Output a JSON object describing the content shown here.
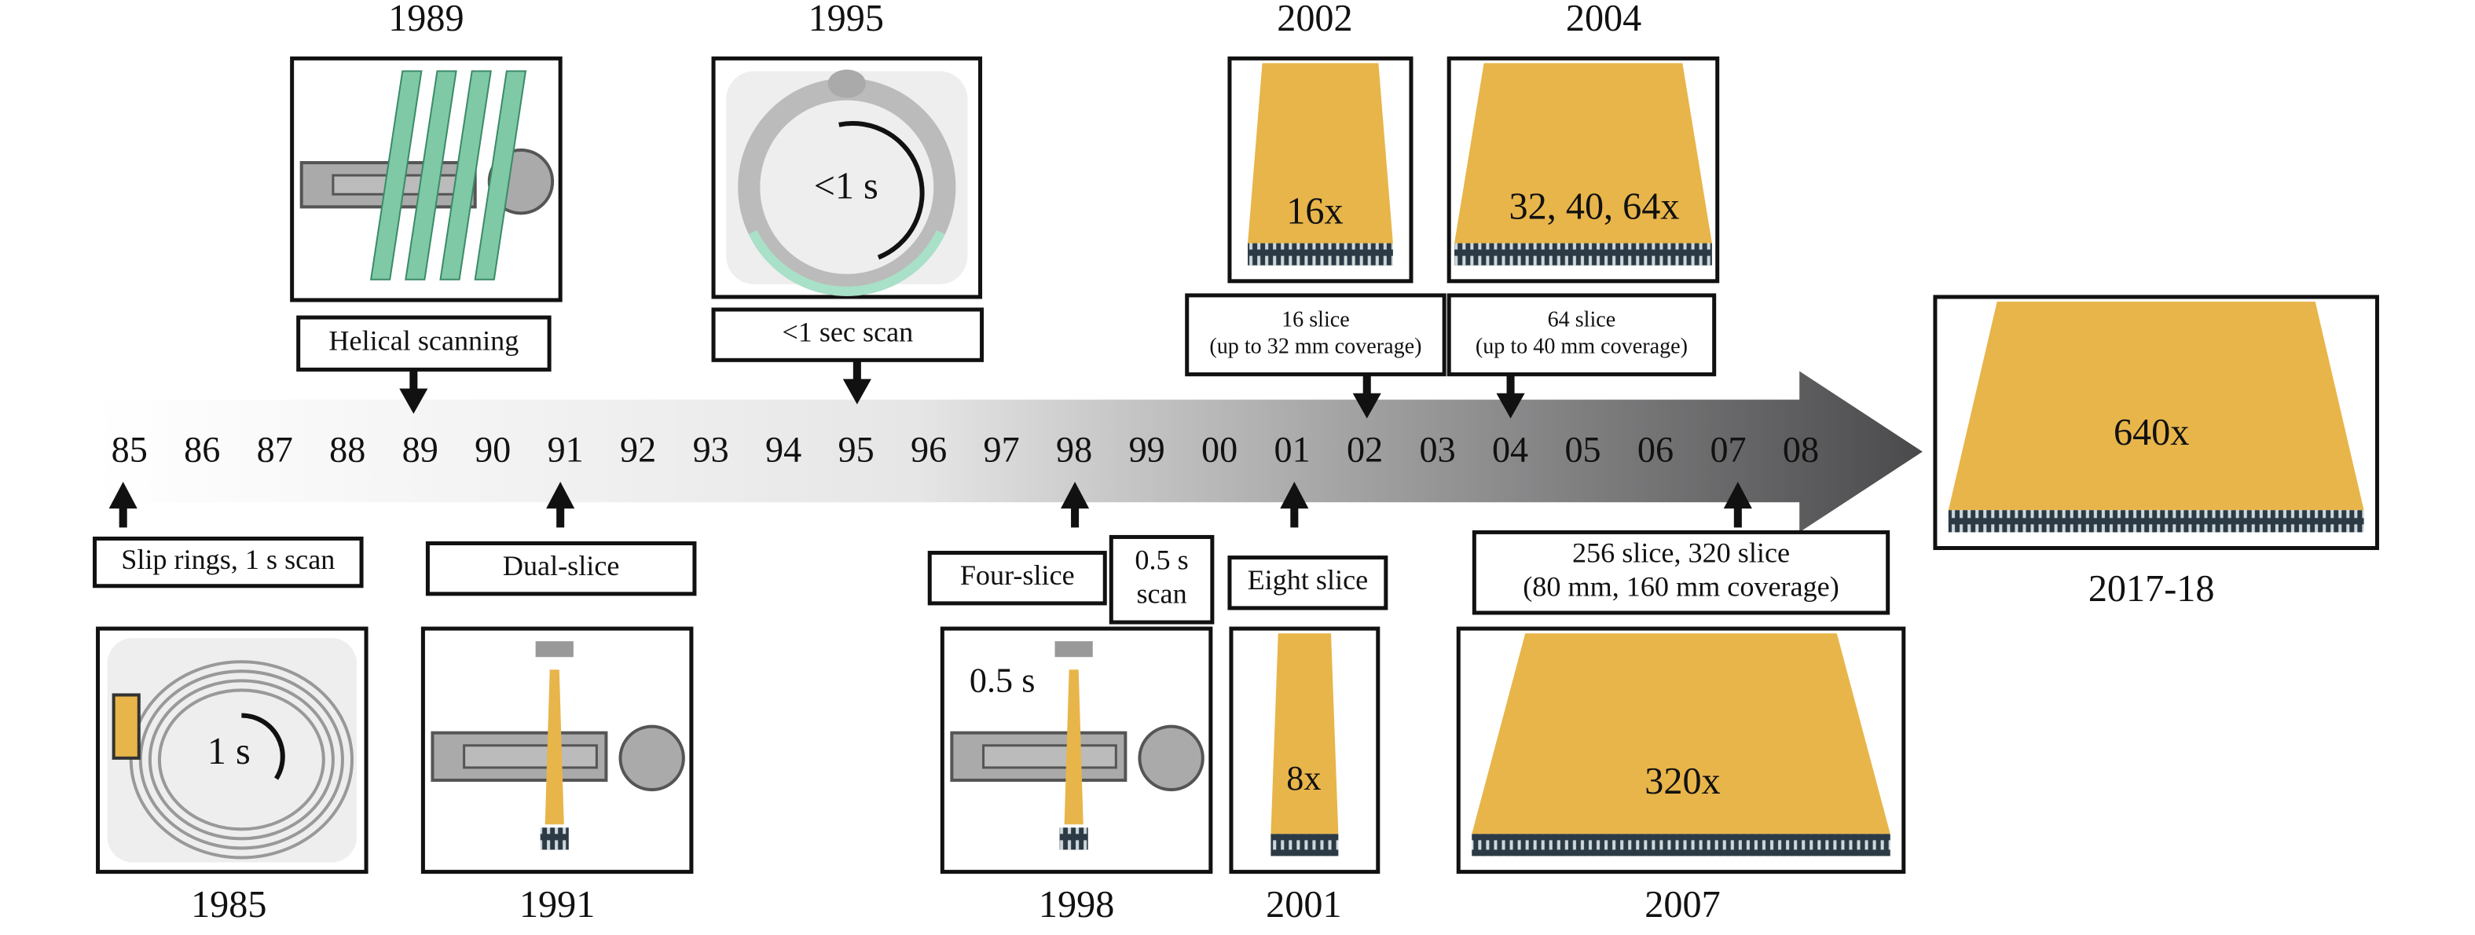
{
  "timeline": {
    "ticks": [
      "85",
      "86",
      "87",
      "88",
      "89",
      "90",
      "91",
      "92",
      "93",
      "94",
      "95",
      "96",
      "97",
      "98",
      "99",
      "00",
      "01",
      "02",
      "03",
      "04",
      "05",
      "06",
      "07",
      "08"
    ]
  },
  "events": [
    {
      "year": "1989",
      "labels": [
        [
          "Helical scanning"
        ]
      ]
    },
    {
      "year": "1995",
      "labels": [
        [
          "<1 sec scan"
        ]
      ],
      "panel_text": "<1 s"
    },
    {
      "year": "2002",
      "labels": [
        [
          "16 slice",
          "(up to 32 mm coverage)"
        ]
      ],
      "panel_text": "16x"
    },
    {
      "year": "2004",
      "labels": [
        [
          "64 slice",
          "(up to 40 mm coverage)"
        ]
      ],
      "panel_text": "32, 40, 64x"
    },
    {
      "year": "1985",
      "labels": [
        [
          "Slip rings, 1 s scan"
        ]
      ],
      "panel_text": "1 s"
    },
    {
      "year": "1991",
      "labels": [
        [
          "Dual-slice"
        ]
      ]
    },
    {
      "year": "1998",
      "labels": [
        [
          "Four-slice"
        ],
        [
          "0.5 s",
          "scan"
        ]
      ],
      "panel_text": "0.5 s"
    },
    {
      "year": "2001",
      "labels": [
        [
          "Eight slice"
        ]
      ],
      "panel_text": "8x"
    },
    {
      "year": "2007",
      "labels": [
        [
          "256 slice, 320 slice",
          "(80 mm, 160 mm coverage)"
        ]
      ],
      "panel_text": "320x"
    },
    {
      "year": "2017-18",
      "panel_text": "640x"
    }
  ]
}
